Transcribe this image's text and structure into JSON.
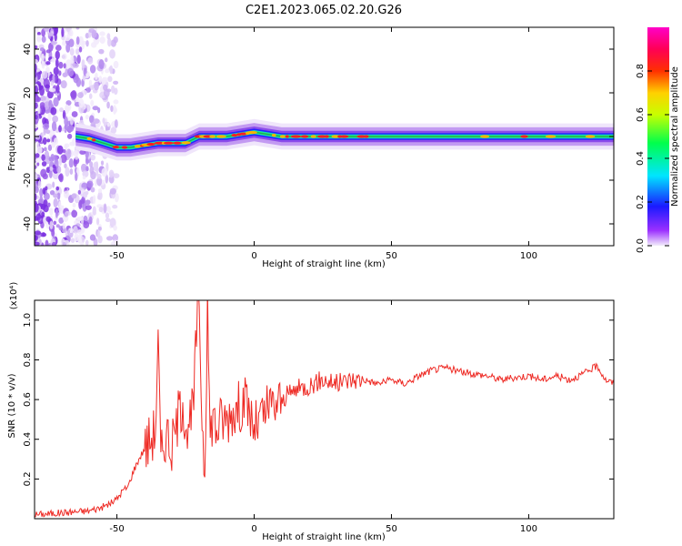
{
  "title": "C2E1.2023.065.02.20.G26",
  "chart_data": [
    {
      "type": "heatmap",
      "xlabel": "Height of straight line (km)",
      "ylabel": "Frequency (Hz)",
      "xlim": [
        -80,
        131
      ],
      "ylim": [
        -50,
        50
      ],
      "xticks": [
        -50,
        0,
        50,
        100
      ],
      "yticks": [
        -40,
        -20,
        0,
        20,
        40
      ],
      "colorbar": {
        "label": "Normalized spectral amplitude",
        "range": [
          0,
          1
        ],
        "ticks": [
          0.0,
          0.2,
          0.4,
          0.6,
          0.8
        ],
        "colormap": "rainbow: white-lavender at 0 through violet, blue, cyan, green, yellow, orange, red, to magenta at 1"
      },
      "ridge": {
        "description": "dominant frequency ridge",
        "x": [
          -65,
          -60,
          -55,
          -50,
          -45,
          -40,
          -35,
          -30,
          -25,
          -20,
          -15,
          -10,
          -5,
          0,
          5,
          10,
          20,
          30,
          40,
          60,
          80,
          100,
          120,
          131
        ],
        "y": [
          0,
          -1,
          -3,
          -5,
          -5,
          -4,
          -3,
          -3,
          -3,
          0,
          0,
          0,
          1,
          2,
          1,
          0,
          0,
          0,
          0,
          0,
          0,
          0,
          0,
          0
        ]
      },
      "noise_region_x": [
        -80,
        -50
      ]
    },
    {
      "type": "line",
      "xlabel": "Height of straight line (km)",
      "ylabel": "SNR (10 * v/v)",
      "y_multiplier": "(x10⁴)",
      "xlim": [
        -80,
        131
      ],
      "ylim": [
        0,
        1.1
      ],
      "xticks": [
        -50,
        0,
        50,
        100
      ],
      "yticks": [
        0.2,
        0.4,
        0.6,
        0.8,
        1.0
      ],
      "series": [
        {
          "color": "#ee2a24",
          "x": [
            -80,
            -70,
            -60,
            -55,
            -52,
            -50,
            -48,
            -46,
            -44,
            -42,
            -40,
            -38,
            -36,
            -35,
            -34,
            -32,
            -30,
            -28,
            -26,
            -24,
            -22,
            -21,
            -20,
            -19,
            -18,
            -17,
            -16,
            -15,
            -14,
            -12,
            -10,
            -8,
            -6,
            -4,
            -2,
            0,
            5,
            10,
            15,
            20,
            25,
            30,
            35,
            40,
            45,
            50,
            55,
            60,
            65,
            70,
            75,
            80,
            85,
            90,
            95,
            100,
            105,
            110,
            115,
            120,
            125,
            128,
            131
          ],
          "y": [
            0.02,
            0.03,
            0.04,
            0.06,
            0.08,
            0.1,
            0.14,
            0.16,
            0.24,
            0.3,
            0.35,
            0.4,
            0.45,
            0.88,
            0.3,
            0.45,
            0.35,
            0.5,
            0.6,
            0.4,
            0.6,
            0.95,
            1.1,
            0.5,
            0.25,
            1.05,
            0.4,
            0.55,
            0.45,
            0.5,
            0.5,
            0.55,
            0.55,
            0.6,
            0.55,
            0.45,
            0.55,
            0.6,
            0.65,
            0.67,
            0.7,
            0.68,
            0.7,
            0.7,
            0.68,
            0.7,
            0.68,
            0.72,
            0.75,
            0.76,
            0.74,
            0.73,
            0.72,
            0.7,
            0.71,
            0.72,
            0.7,
            0.72,
            0.7,
            0.73,
            0.77,
            0.7,
            0.68
          ]
        }
      ]
    }
  ]
}
